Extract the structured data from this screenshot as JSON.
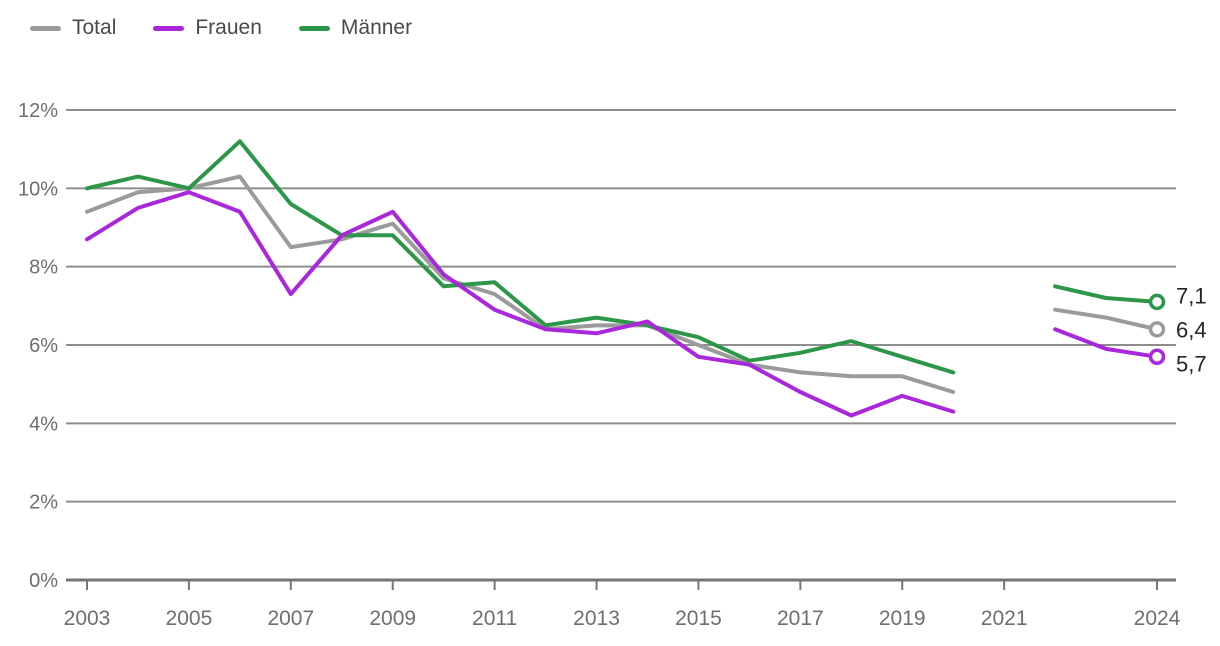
{
  "legend": {
    "position": "top-left"
  },
  "chart_data": {
    "type": "line",
    "title": "",
    "xlabel": "",
    "ylabel": "",
    "grid": "horizontal-only",
    "legend_position": "top-left",
    "xlim": [
      2003,
      2024
    ],
    "ylim": [
      0,
      12
    ],
    "x": [
      2003,
      2004,
      2005,
      2006,
      2007,
      2008,
      2009,
      2010,
      2011,
      2012,
      2013,
      2014,
      2015,
      2016,
      2017,
      2018,
      2019,
      2020,
      2021,
      2022,
      2023,
      2024
    ],
    "gap_years": [
      2021
    ],
    "y_ticks": [
      {
        "value": 0,
        "label": "0%"
      },
      {
        "value": 2,
        "label": "2%"
      },
      {
        "value": 4,
        "label": "4%"
      },
      {
        "value": 6,
        "label": "6%"
      },
      {
        "value": 8,
        "label": "8%"
      },
      {
        "value": 10,
        "label": "10%"
      },
      {
        "value": 12,
        "label": "12%"
      }
    ],
    "x_ticks": [
      {
        "year": 2003,
        "label": "2003"
      },
      {
        "year": 2005,
        "label": "2005"
      },
      {
        "year": 2007,
        "label": "2007"
      },
      {
        "year": 2009,
        "label": "2009"
      },
      {
        "year": 2011,
        "label": "2011"
      },
      {
        "year": 2013,
        "label": "2013"
      },
      {
        "year": 2015,
        "label": "2015"
      },
      {
        "year": 2017,
        "label": "2017"
      },
      {
        "year": 2019,
        "label": "2019"
      },
      {
        "year": 2021,
        "label": "2021"
      },
      {
        "year": 2024,
        "label": "2024"
      }
    ],
    "series": [
      {
        "name": "Total",
        "color": "#9b9b9b",
        "end_label": "6,4",
        "values": [
          9.4,
          9.9,
          10.0,
          10.3,
          8.5,
          8.7,
          9.1,
          7.7,
          7.3,
          6.4,
          6.5,
          6.5,
          6.0,
          5.5,
          5.3,
          5.2,
          5.2,
          4.8,
          null,
          6.9,
          6.7,
          6.4
        ]
      },
      {
        "name": "Frauen",
        "color": "#aa28dc",
        "end_label": "5,7",
        "values": [
          8.7,
          9.5,
          9.9,
          9.4,
          7.3,
          8.8,
          9.4,
          7.8,
          6.9,
          6.4,
          6.3,
          6.6,
          5.7,
          5.5,
          4.8,
          4.2,
          4.7,
          4.3,
          null,
          6.4,
          5.9,
          5.7
        ]
      },
      {
        "name": "Männer",
        "color": "#2d9648",
        "end_label": "7,1",
        "values": [
          10.0,
          10.3,
          10.0,
          11.2,
          9.6,
          8.8,
          8.8,
          7.5,
          7.6,
          6.5,
          6.7,
          6.5,
          6.2,
          5.6,
          5.8,
          6.1,
          5.7,
          5.3,
          null,
          7.5,
          7.2,
          7.1
        ]
      }
    ],
    "colors": {
      "gridline": "#8d8d8d",
      "axis_line": "#767676",
      "tick_text": "#6e6e6e",
      "end_label_text": "#262626"
    }
  }
}
